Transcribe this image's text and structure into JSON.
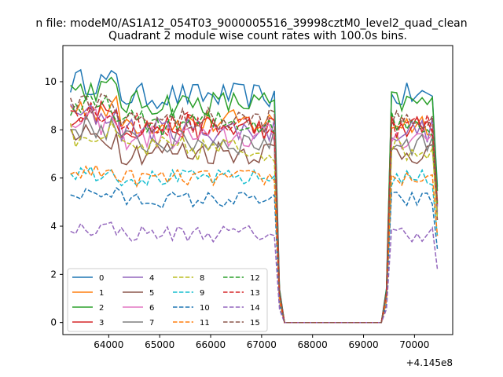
{
  "figure": {
    "suptitle": "n file: modeM0/AS1A12_054T03_9000005516_39998cztM0_level2_quad_clean",
    "title": "Quadrant 2 module wise count rates with 100.0s bins.",
    "offset_label": "+4.145e8"
  },
  "chart_data": {
    "type": "line",
    "title": "Quadrant 2 module wise count rates with 100.0s bins.",
    "xlabel": "",
    "ylabel": "",
    "x_offset": 414500000,
    "xlim": [
      63100,
      70750
    ],
    "ylim": [
      -0.5,
      11.5
    ],
    "xticks": [
      63000,
      64000,
      65000,
      66000,
      67000,
      68000,
      69000,
      70000
    ],
    "yticks": [
      0,
      2,
      4,
      6,
      8,
      10
    ],
    "grid": false,
    "legend": {
      "placement": "lower-left",
      "columns": 4
    },
    "x": [
      63250,
      63350,
      63450,
      63550,
      63650,
      63750,
      63850,
      63950,
      64050,
      64150,
      64250,
      64350,
      64450,
      64550,
      64650,
      64750,
      64850,
      64950,
      65050,
      65150,
      65250,
      65350,
      65450,
      65550,
      65650,
      65750,
      65850,
      65950,
      66050,
      66150,
      66250,
      66350,
      66450,
      66550,
      66650,
      66750,
      66850,
      66950,
      67050,
      67150,
      67250,
      67350,
      67450,
      67550,
      67650,
      67750,
      67850,
      67950,
      68050,
      68150,
      68250,
      68350,
      68450,
      68550,
      68650,
      68750,
      68850,
      68950,
      69050,
      69150,
      69250,
      69350,
      69450,
      69550,
      69650,
      69750,
      69850,
      69950,
      70050,
      70150,
      70250,
      70350,
      70450
    ],
    "series": [
      {
        "name": "0",
        "color": "#1f77b4",
        "dash": "solid",
        "level": 9.4
      },
      {
        "name": "1",
        "color": "#ff7f0e",
        "dash": "solid",
        "level": 8.3
      },
      {
        "name": "2",
        "color": "#2ca02c",
        "dash": "solid",
        "level": 9.1
      },
      {
        "name": "3",
        "color": "#d62728",
        "dash": "solid",
        "level": 8.1
      },
      {
        "name": "4",
        "color": "#9467bd",
        "dash": "solid",
        "level": 8.0
      },
      {
        "name": "5",
        "color": "#8c564b",
        "dash": "solid",
        "level": 7.1
      },
      {
        "name": "6",
        "color": "#e377c2",
        "dash": "solid",
        "level": 7.7
      },
      {
        "name": "7",
        "color": "#7f7f7f",
        "dash": "solid",
        "level": 7.5
      },
      {
        "name": "8",
        "color": "#bcbd22",
        "dash": "dashed",
        "level": 7.2
      },
      {
        "name": "9",
        "color": "#17becf",
        "dash": "dashed",
        "level": 6.0
      },
      {
        "name": "10",
        "color": "#1f77b4",
        "dash": "dashed",
        "level": 5.1
      },
      {
        "name": "11",
        "color": "#ff7f0e",
        "dash": "dashed",
        "level": 6.0
      },
      {
        "name": "12",
        "color": "#2ca02c",
        "dash": "dashed",
        "level": 8.3
      },
      {
        "name": "13",
        "color": "#d62728",
        "dash": "dashed",
        "level": 8.2
      },
      {
        "name": "14",
        "color": "#9467bd",
        "dash": "dashed",
        "level": 3.7
      },
      {
        "name": "15",
        "color": "#8c564b",
        "dash": "dashed",
        "level": 8.4
      }
    ],
    "gap_start": 67450,
    "gap_end": 69350,
    "gap_value": 0
  }
}
